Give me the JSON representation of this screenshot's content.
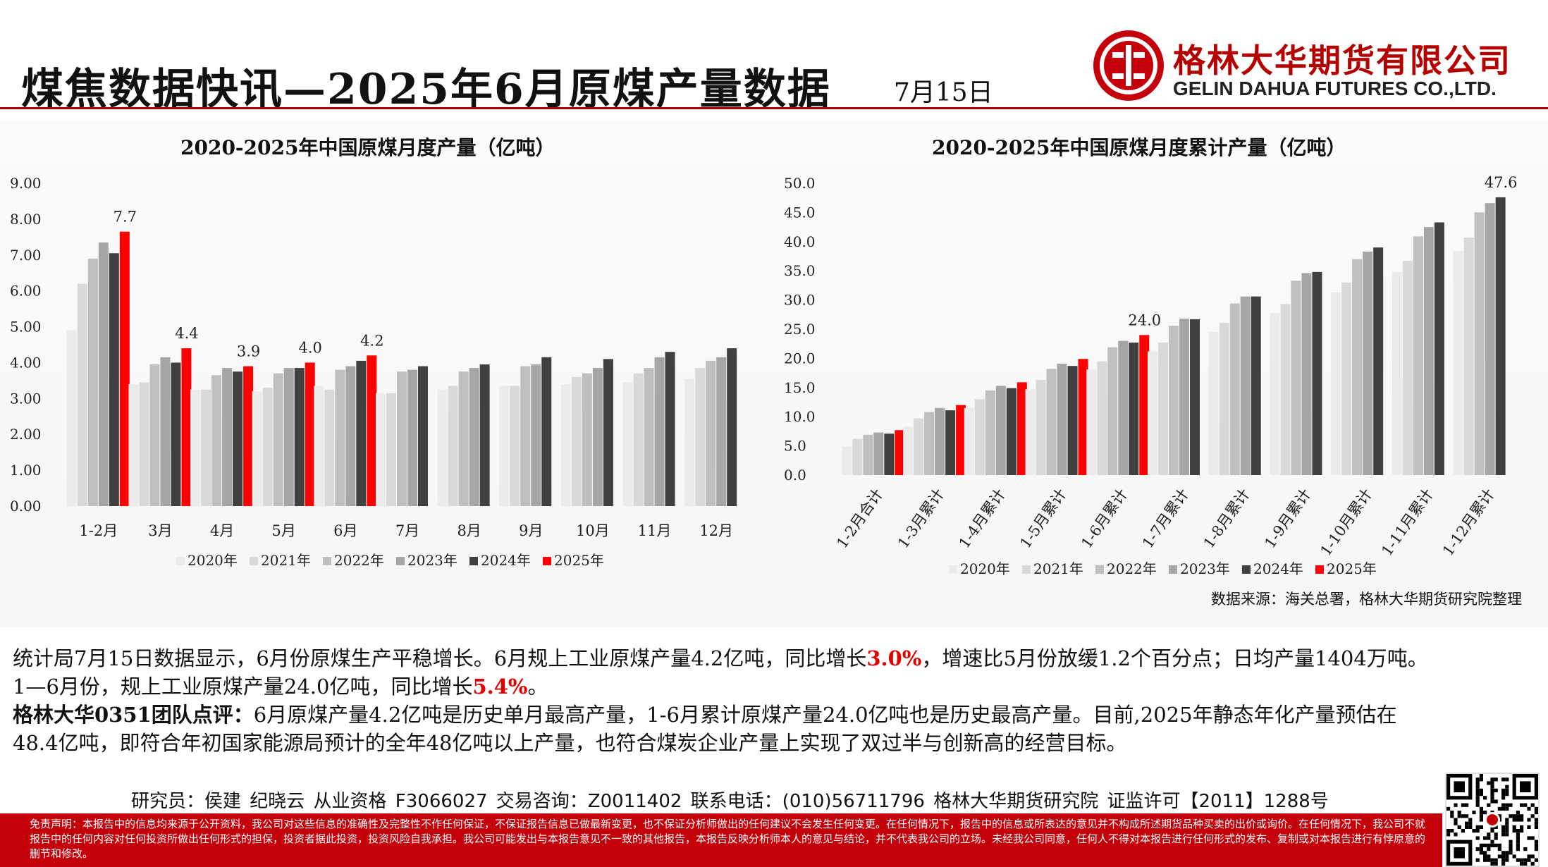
{
  "header": {
    "title": "煤焦数据快讯—2025年6月原煤产量数据",
    "date": "7月15日",
    "company_cn": "格林大华期货有限公司",
    "company_en": "GELIN DAHUA FUTURES CO.,LTD."
  },
  "colors": {
    "accent_red": "#c4000a",
    "series": [
      "#ebebeb",
      "#d9d9d9",
      "#bfbfbf",
      "#a6a6a6",
      "#404040",
      "#ff0000"
    ]
  },
  "chart_data": [
    {
      "type": "bar",
      "title": "2020-2025年中国原煤月度产量（亿吨）",
      "categories": [
        "1-2月",
        "3月",
        "4月",
        "5月",
        "6月",
        "7月",
        "8月",
        "9月",
        "10月",
        "11月",
        "12月"
      ],
      "ylim": [
        0,
        9
      ],
      "yticks": [
        "0.00",
        "1.00",
        "2.00",
        "3.00",
        "4.00",
        "5.00",
        "6.00",
        "7.00",
        "8.00",
        "9.00"
      ],
      "legend_position": "bottom",
      "grid": false,
      "series": [
        {
          "name": "2020年",
          "values": [
            4.9,
            3.4,
            3.25,
            3.2,
            3.35,
            3.15,
            3.25,
            3.35,
            3.4,
            3.45,
            3.55
          ]
        },
        {
          "name": "2021年",
          "values": [
            6.2,
            3.45,
            3.25,
            3.3,
            3.25,
            3.15,
            3.35,
            3.35,
            3.6,
            3.7,
            3.85
          ]
        },
        {
          "name": "2022年",
          "values": [
            6.9,
            3.95,
            3.65,
            3.7,
            3.8,
            3.75,
            3.75,
            3.9,
            3.7,
            3.85,
            4.05
          ]
        },
        {
          "name": "2023年",
          "values": [
            7.35,
            4.15,
            3.85,
            3.85,
            3.9,
            3.8,
            3.85,
            3.95,
            3.85,
            4.15,
            4.15
          ]
        },
        {
          "name": "2024年",
          "values": [
            7.05,
            4.0,
            3.75,
            3.85,
            4.05,
            3.9,
            3.95,
            4.15,
            4.1,
            4.3,
            4.4
          ]
        },
        {
          "name": "2025年",
          "values": [
            7.65,
            4.4,
            3.9,
            4.0,
            4.2,
            null,
            null,
            null,
            null,
            null,
            null
          ]
        }
      ],
      "data_labels": [
        {
          "category": "1-2月",
          "series": "2025年",
          "text": "7.7"
        },
        {
          "category": "3月",
          "series": "2025年",
          "text": "4.4"
        },
        {
          "category": "4月",
          "series": "2025年",
          "text": "3.9"
        },
        {
          "category": "5月",
          "series": "2025年",
          "text": "4.0"
        },
        {
          "category": "6月",
          "series": "2025年",
          "text": "4.2"
        }
      ]
    },
    {
      "type": "bar",
      "title": "2020-2025年中国原煤月度累计产量（亿吨）",
      "categories": [
        "1-2月合计",
        "1-3月累计",
        "1-4月累计",
        "1-5月累计",
        "1-6月累计",
        "1-7月累计",
        "1-8月累计",
        "1-9月累计",
        "1-10月累计",
        "1-11月累计",
        "1-12月累计"
      ],
      "ylim": [
        0,
        50
      ],
      "yticks": [
        "0.0",
        "5.0",
        "10.0",
        "15.0",
        "20.0",
        "25.0",
        "30.0",
        "35.0",
        "40.0",
        "45.0",
        "50.0"
      ],
      "legend_position": "bottom",
      "grid": false,
      "series": [
        {
          "name": "2020年",
          "values": [
            4.9,
            8.3,
            11.5,
            14.7,
            18.1,
            21.2,
            24.5,
            27.8,
            31.3,
            34.8,
            38.4
          ]
        },
        {
          "name": "2021年",
          "values": [
            6.2,
            9.7,
            13.0,
            16.3,
            19.5,
            22.7,
            26.1,
            29.3,
            33.0,
            36.7,
            40.7
          ]
        },
        {
          "name": "2022年",
          "values": [
            6.9,
            10.8,
            14.5,
            18.2,
            21.9,
            25.6,
            29.4,
            33.3,
            37.0,
            40.9,
            45.0
          ]
        },
        {
          "name": "2023年",
          "values": [
            7.3,
            11.5,
            15.3,
            19.1,
            23.0,
            26.8,
            30.6,
            34.6,
            38.3,
            42.5,
            46.6
          ]
        },
        {
          "name": "2024年",
          "values": [
            7.1,
            11.1,
            14.9,
            18.7,
            22.7,
            26.7,
            30.6,
            34.8,
            39.0,
            43.3,
            47.6
          ]
        },
        {
          "name": "2025年",
          "values": [
            7.7,
            12.0,
            15.9,
            19.9,
            24.0,
            null,
            null,
            null,
            null,
            null,
            null
          ]
        }
      ],
      "data_labels": [
        {
          "category": "1-6月累计",
          "series": "2025年",
          "text": "24.0"
        },
        {
          "category": "1-12月累计",
          "series": "2024年",
          "text": "47.6"
        }
      ]
    }
  ],
  "source": "数据来源：海关总署，格林大华期货研究院整理",
  "commentary": {
    "p1_a": "统计局7月15日数据显示，6月份原煤生产平稳增长。6月规上工业原煤产量4.2亿吨，同比增长",
    "p1_b": "3.0%",
    "p1_c": "，增速比5月份放缓1.2个百分点；日均产量1404万吨。",
    "p2_a": "1—6月份，规上工业原煤产量24.0亿吨，同比增长",
    "p2_b": "5.4%",
    "p2_c": "。",
    "p3_a": "格林大华0351团队点评：",
    "p3_b": "6月原煤产量4.2亿吨是历史单月最高产量，1-6月累计原煤产量24.0亿吨也是历史最高产量。目前,2025年静态年化产量预估在",
    "p4": "48.4亿吨，即符合年初国家能源局预计的全年48亿吨以上产量，也符合煤炭企业产量上实现了双过半与创新高的经营目标。"
  },
  "footer": {
    "contact": "研究员：侯建 纪晓云   从业资格 F3066027   交易咨询：Z0011402   联系电话：(010)56711796     格林大华期货研究院  证监许可【2011】1288号",
    "disclaimer": "免责声明：本报告中的信息均来源于公开资料，我公司对这些信息的准确性及完整性不作任何保证，不保证报告信息已做最新变更，也不保证分析师做出的任何建议不会发生任何变更。在任何情况下，报告中的信息或所表达的意见并不构成所述期货品种买卖的出价或询价。在任何情况下，我公司不就报告中的任何内容对任何投资所做出任何形式的担保，投资者据此投资，投资风险自我承担。我公司可能发出与本报告意见不一致的其他报告，本报告反映分析师本人的意见与结论，并不代表我公司的立场。未经我公司同意，任何人不得对本报告进行任何形式的发布、复制或对本报告进行有悖原意的删节和修改。"
  }
}
